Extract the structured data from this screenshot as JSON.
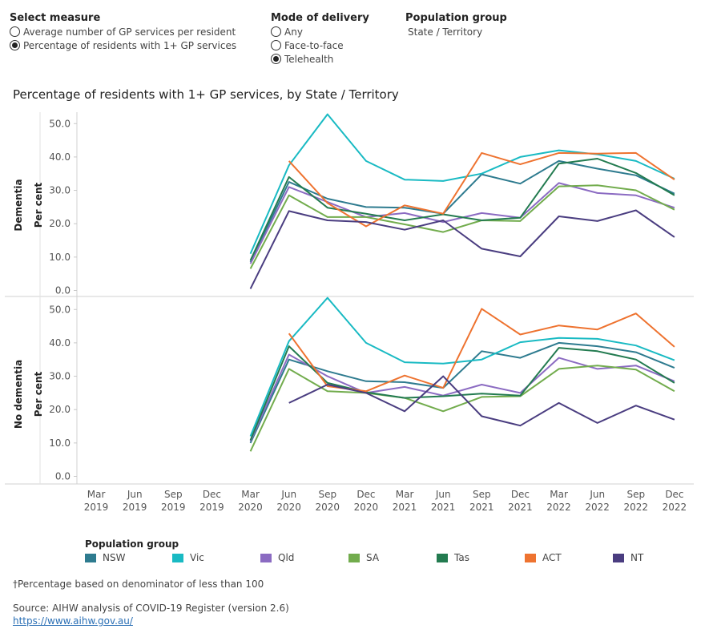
{
  "controls": {
    "measure": {
      "title": "Select measure",
      "options": [
        {
          "label": "Average number of GP services per resident",
          "selected": false
        },
        {
          "label": "Percentage of residents with 1+ GP services",
          "selected": true
        }
      ]
    },
    "delivery": {
      "title": "Mode of delivery",
      "options": [
        {
          "label": "Any",
          "selected": false
        },
        {
          "label": "Face-to-face",
          "selected": false
        },
        {
          "label": "Telehealth",
          "selected": true
        }
      ]
    },
    "population": {
      "title": "Population group",
      "value": "State / Territory"
    }
  },
  "chart_data": {
    "type": "line",
    "title": "Percentage of residents with 1+ GP services, by State / Territory",
    "x_categories": [
      "Mar 2019",
      "Jun 2019",
      "Sep 2019",
      "Dec 2019",
      "Mar 2020",
      "Jun 2020",
      "Sep 2020",
      "Dec 2020",
      "Mar 2021",
      "Jun 2021",
      "Sep 2021",
      "Dec 2021",
      "Mar 2022",
      "Jun 2022",
      "Sep 2022",
      "Dec 2022"
    ],
    "ylabel": "Per cent",
    "ylim": [
      0,
      55
    ],
    "yticks": [
      "0.0",
      "10.0",
      "20.0",
      "30.0",
      "40.0",
      "50.0"
    ],
    "grid": false,
    "legend": {
      "title": "Population group",
      "placement": "bottom",
      "entries": [
        {
          "name": "NSW",
          "color": "#2e7b8f"
        },
        {
          "name": "Vic",
          "color": "#19bac3"
        },
        {
          "name": "Qld",
          "color": "#8b6bc2"
        },
        {
          "name": "SA",
          "color": "#72ac4d"
        },
        {
          "name": "Tas",
          "color": "#237b50"
        },
        {
          "name": "ACT",
          "color": "#ee7330"
        },
        {
          "name": "NT",
          "color": "#4a3d80"
        }
      ]
    },
    "panels": [
      {
        "label": "Dementia",
        "series": [
          {
            "name": "NSW",
            "values": [
              null,
              null,
              null,
              null,
              8.5,
              32.5,
              27.5,
              25.0,
              24.8,
              23.0,
              34.8,
              32.0,
              38.8,
              36.5,
              34.5,
              29.0
            ]
          },
          {
            "name": "Vic",
            "values": [
              null,
              null,
              null,
              null,
              11.0,
              37.5,
              52.8,
              38.8,
              33.2,
              32.8,
              35.0,
              40.0,
              42.0,
              40.8,
              38.8,
              33.5
            ]
          },
          {
            "name": "Qld",
            "values": [
              null,
              null,
              null,
              null,
              8.0,
              31.0,
              26.5,
              22.0,
              23.2,
              20.5,
              23.2,
              21.8,
              32.2,
              29.2,
              28.5,
              24.8
            ]
          },
          {
            "name": "SA",
            "values": [
              null,
              null,
              null,
              null,
              6.5,
              28.5,
              22.0,
              22.0,
              19.8,
              17.5,
              21.0,
              20.8,
              31.2,
              31.5,
              30.0,
              24.2
            ]
          },
          {
            "name": "Tas",
            "values": [
              null,
              null,
              null,
              null,
              9.0,
              34.0,
              24.8,
              23.0,
              21.0,
              22.8,
              21.0,
              21.8,
              38.0,
              39.5,
              35.2,
              28.5
            ]
          },
          {
            "name": "ACT",
            "values": [
              null,
              null,
              null,
              null,
              null,
              38.8,
              26.2,
              19.2,
              25.5,
              23.0,
              41.2,
              37.8,
              41.2,
              41.0,
              41.2,
              33.2
            ]
          },
          {
            "name": "NT",
            "values": [
              null,
              null,
              null,
              null,
              0.5,
              23.8,
              21.0,
              20.5,
              18.2,
              21.0,
              12.5,
              10.2,
              22.2,
              20.8,
              24.0,
              16.0
            ]
          }
        ]
      },
      {
        "label": "No dementia",
        "series": [
          {
            "name": "NSW",
            "values": [
              null,
              null,
              null,
              null,
              10.0,
              35.0,
              31.5,
              28.5,
              28.2,
              26.5,
              37.5,
              35.5,
              40.0,
              39.0,
              37.2,
              32.5
            ]
          },
          {
            "name": "Vic",
            "values": [
              null,
              null,
              null,
              null,
              12.0,
              40.5,
              53.5,
              40.0,
              34.2,
              33.8,
              35.0,
              40.2,
              41.5,
              41.2,
              39.2,
              34.8
            ]
          },
          {
            "name": "Qld",
            "values": [
              null,
              null,
              null,
              null,
              10.5,
              36.5,
              30.0,
              25.0,
              26.8,
              24.2,
              27.5,
              25.0,
              35.5,
              32.2,
              33.2,
              28.5
            ]
          },
          {
            "name": "SA",
            "values": [
              null,
              null,
              null,
              null,
              7.5,
              32.2,
              25.5,
              25.0,
              23.5,
              19.5,
              23.8,
              24.0,
              32.2,
              33.2,
              32.0,
              25.5
            ]
          },
          {
            "name": "Tas",
            "values": [
              null,
              null,
              null,
              null,
              10.8,
              39.0,
              28.0,
              25.2,
              23.5,
              24.0,
              24.8,
              24.2,
              38.5,
              37.5,
              35.0,
              28.0
            ]
          },
          {
            "name": "ACT",
            "values": [
              null,
              null,
              null,
              null,
              null,
              42.8,
              27.0,
              25.5,
              30.2,
              26.5,
              50.2,
              42.5,
              45.2,
              44.0,
              48.8,
              38.8
            ]
          },
          {
            "name": "NT",
            "values": [
              null,
              null,
              null,
              null,
              null,
              22.0,
              27.5,
              25.0,
              19.5,
              30.0,
              18.0,
              15.2,
              22.0,
              16.0,
              21.2,
              17.0
            ]
          }
        ]
      }
    ]
  },
  "footnote": "†Percentage based on denominator of less than 100",
  "source": "Source: AIHW analysis of COVID-19 Register (version 2.6)",
  "source_link": "https://www.aihw.gov.au/"
}
